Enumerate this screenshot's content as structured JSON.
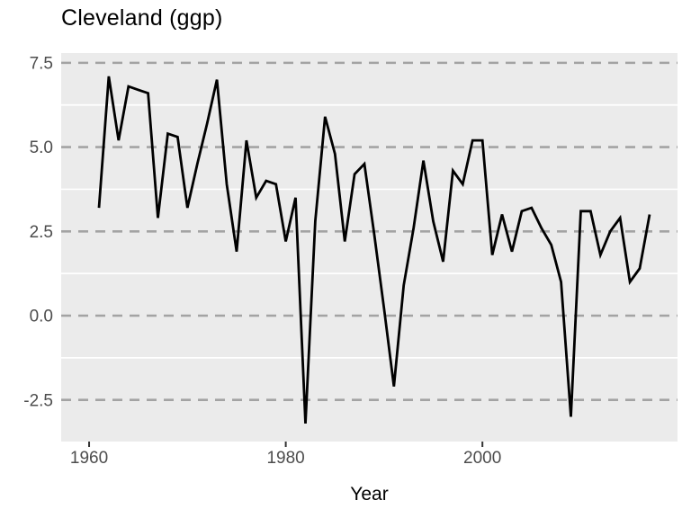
{
  "header": {
    "title": "Cleveland (ggp)"
  },
  "chart_data": {
    "type": "line",
    "title": "Cleveland (ggp)",
    "xlabel": "Year",
    "ylabel": "",
    "x": [
      1961,
      1962,
      1963,
      1964,
      1965,
      1966,
      1967,
      1968,
      1969,
      1970,
      1971,
      1972,
      1973,
      1974,
      1975,
      1976,
      1977,
      1978,
      1979,
      1980,
      1981,
      1982,
      1983,
      1984,
      1985,
      1986,
      1987,
      1988,
      1989,
      1990,
      1991,
      1992,
      1993,
      1994,
      1995,
      1996,
      1997,
      1998,
      1999,
      2000,
      2001,
      2002,
      2003,
      2004,
      2005,
      2006,
      2007,
      2008,
      2009,
      2010,
      2011,
      2012,
      2013,
      2014,
      2015,
      2016,
      2017
    ],
    "values": [
      3.2,
      7.1,
      5.2,
      6.8,
      6.7,
      6.6,
      2.9,
      5.4,
      5.3,
      3.2,
      4.5,
      5.7,
      7.0,
      3.9,
      1.9,
      5.2,
      3.5,
      4.0,
      3.9,
      2.2,
      3.5,
      -3.2,
      2.8,
      5.9,
      4.8,
      2.2,
      4.2,
      4.5,
      2.4,
      0.2,
      -2.1,
      0.9,
      2.6,
      4.6,
      2.8,
      1.6,
      4.3,
      3.9,
      5.2,
      5.2,
      1.8,
      3.0,
      1.9,
      3.1,
      3.2,
      2.6,
      2.1,
      1.0,
      -3.0,
      3.1,
      3.1,
      1.8,
      2.5,
      2.9,
      1.0,
      1.4,
      3.0
    ],
    "x_tick_labels": [
      "1960",
      "1980",
      "2000"
    ],
    "x_tick_values": [
      1960,
      1980,
      2000
    ],
    "y_tick_labels": [
      "7.5",
      "5.0",
      "2.5",
      "0.0",
      "-2.5"
    ],
    "y_tick_values": [
      7.5,
      5.0,
      2.5,
      0.0,
      -2.5
    ],
    "y_minor_values": [
      6.25,
      3.75,
      1.25,
      -1.25
    ],
    "xlim": [
      1957.16,
      2019.84
    ],
    "ylim": [
      -3.735,
      7.79
    ],
    "grid": "major: dashed gray horizontal; minor: solid white horizontal; no vertical gridlines",
    "legend": "none",
    "colors": {
      "panel_background": "#EBEBEB",
      "major_grid": "#A3A3A3",
      "minor_grid": "#FFFFFF",
      "series_line": "#000000",
      "tick_label": "#4D4D4D",
      "tick_mark": "#333333",
      "title": "#000000",
      "axis_title": "#000000",
      "page_background": "#FFFFFF"
    }
  }
}
